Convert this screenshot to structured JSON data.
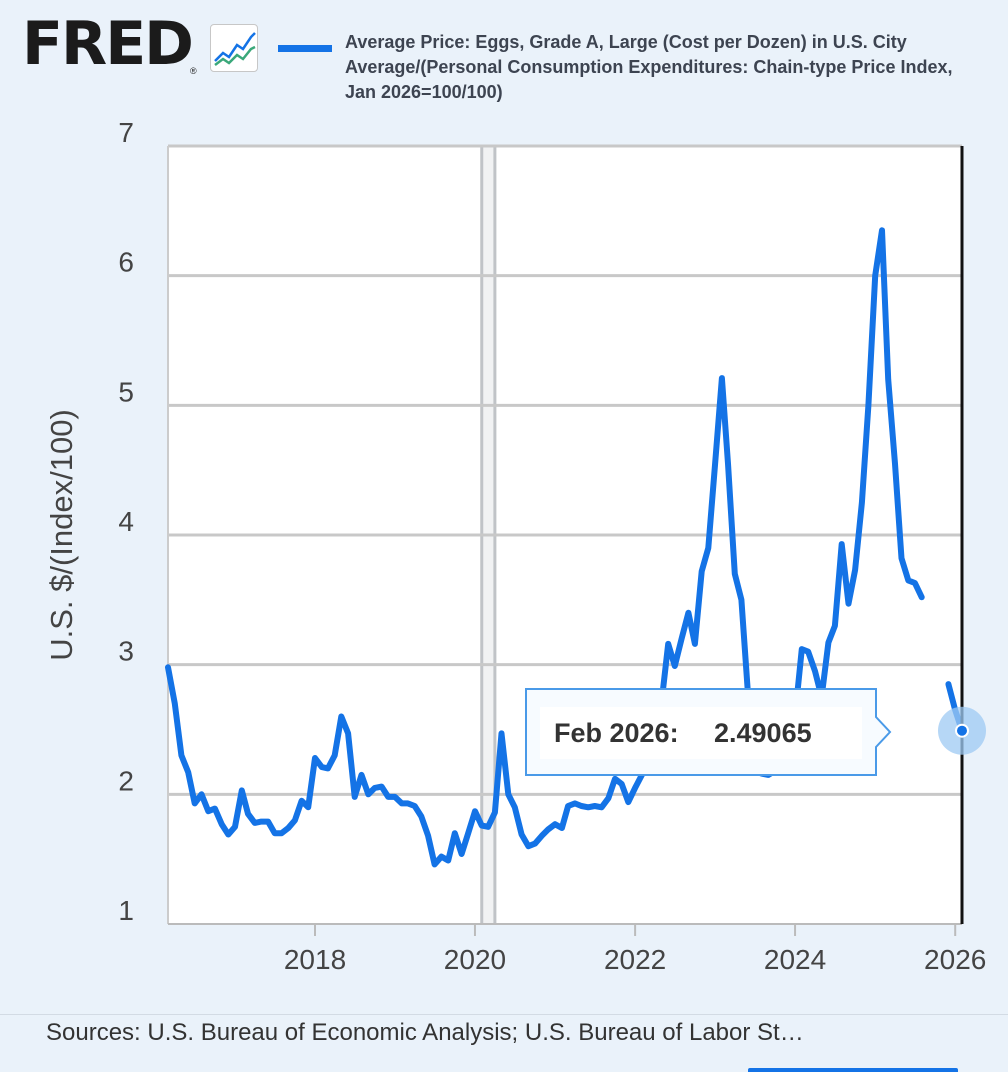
{
  "header": {
    "logo_text": "FRED",
    "logo_mark": "®",
    "logo_icon": "line-chart-icon",
    "legend_label": "Average Price: Eggs, Grade A, Large (Cost per Dozen) in U.S. City Average/(Personal Consumption Expenditures: Chain-type Price Index, Jan 2026=100/100)"
  },
  "tooltip": {
    "date": "Feb 2026:",
    "value": "2.49065"
  },
  "footer": {
    "sources": "Sources: U.S. Bureau of Economic Analysis; U.S. Bureau of Labor St…"
  },
  "colors": {
    "series": "#1473e6",
    "background": "#eaf2fa",
    "plot": "#ffffff",
    "grid": "#c8c8c8",
    "recession": "#c0c3c7"
  },
  "chart_data": {
    "type": "line",
    "title": "",
    "xlabel": "",
    "ylabel": "U.S. $/(Index/100)",
    "xlim": [
      "2016-03-01",
      "2026-02-01"
    ],
    "ylim": [
      1,
      7
    ],
    "y_ticks": [
      1,
      2,
      3,
      4,
      5,
      6,
      7
    ],
    "x_ticks": [
      "2018",
      "2020",
      "2022",
      "2024",
      "2026"
    ],
    "grid": true,
    "recession_shading": [
      "2020-02-01",
      "2020-04-01"
    ],
    "series": [
      {
        "name": "Average Price: Eggs, Grade A, Large (Cost per Dozen) in U.S. City Average/(Personal Consumption Expenditures: Chain-type Price Index, Jan 2026=100/100)",
        "points": [
          [
            "2016-03-01",
            2.98
          ],
          [
            "2016-04-01",
            2.7
          ],
          [
            "2016-05-01",
            2.3
          ],
          [
            "2016-06-01",
            2.17
          ],
          [
            "2016-07-01",
            1.93
          ],
          [
            "2016-08-01",
            2.0
          ],
          [
            "2016-09-01",
            1.87
          ],
          [
            "2016-10-01",
            1.89
          ],
          [
            "2016-11-01",
            1.77
          ],
          [
            "2016-12-01",
            1.69
          ],
          [
            "2017-01-01",
            1.75
          ],
          [
            "2017-02-01",
            2.03
          ],
          [
            "2017-03-01",
            1.85
          ],
          [
            "2017-04-01",
            1.78
          ],
          [
            "2017-05-01",
            1.79
          ],
          [
            "2017-06-01",
            1.79
          ],
          [
            "2017-07-01",
            1.7
          ],
          [
            "2017-08-01",
            1.7
          ],
          [
            "2017-09-01",
            1.74
          ],
          [
            "2017-10-01",
            1.8
          ],
          [
            "2017-11-01",
            1.95
          ],
          [
            "2017-12-01",
            1.9
          ],
          [
            "2018-01-01",
            2.28
          ],
          [
            "2018-02-01",
            2.21
          ],
          [
            "2018-03-01",
            2.2
          ],
          [
            "2018-04-01",
            2.3
          ],
          [
            "2018-05-01",
            2.6
          ],
          [
            "2018-06-01",
            2.47
          ],
          [
            "2018-07-01",
            1.98
          ],
          [
            "2018-08-01",
            2.15
          ],
          [
            "2018-09-01",
            2.0
          ],
          [
            "2018-10-01",
            2.05
          ],
          [
            "2018-11-01",
            2.06
          ],
          [
            "2018-12-01",
            1.98
          ],
          [
            "2019-01-01",
            1.98
          ],
          [
            "2019-02-01",
            1.93
          ],
          [
            "2019-03-01",
            1.93
          ],
          [
            "2019-04-01",
            1.91
          ],
          [
            "2019-05-01",
            1.83
          ],
          [
            "2019-06-01",
            1.68
          ],
          [
            "2019-07-01",
            1.46
          ],
          [
            "2019-08-01",
            1.52
          ],
          [
            "2019-09-01",
            1.49
          ],
          [
            "2019-10-01",
            1.7
          ],
          [
            "2019-11-01",
            1.54
          ],
          [
            "2019-12-01",
            1.7
          ],
          [
            "2020-01-01",
            1.87
          ],
          [
            "2020-02-01",
            1.76
          ],
          [
            "2020-03-01",
            1.75
          ],
          [
            "2020-04-01",
            1.86
          ],
          [
            "2020-05-01",
            2.47
          ],
          [
            "2020-06-01",
            2.0
          ],
          [
            "2020-07-01",
            1.9
          ],
          [
            "2020-08-01",
            1.69
          ],
          [
            "2020-09-01",
            1.6
          ],
          [
            "2020-10-01",
            1.62
          ],
          [
            "2020-11-01",
            1.68
          ],
          [
            "2020-12-01",
            1.73
          ],
          [
            "2021-01-01",
            1.77
          ],
          [
            "2021-02-01",
            1.74
          ],
          [
            "2021-03-01",
            1.91
          ],
          [
            "2021-04-01",
            1.93
          ],
          [
            "2021-05-01",
            1.91
          ],
          [
            "2021-06-01",
            1.9
          ],
          [
            "2021-07-01",
            1.91
          ],
          [
            "2021-08-01",
            1.9
          ],
          [
            "2021-09-01",
            1.97
          ],
          [
            "2021-10-01",
            2.12
          ],
          [
            "2021-11-01",
            2.08
          ],
          [
            "2021-12-01",
            1.94
          ],
          [
            "2022-01-01",
            2.05
          ],
          [
            "2022-02-01",
            2.15
          ],
          [
            "2022-03-01",
            2.25
          ],
          [
            "2022-04-01",
            2.35
          ],
          [
            "2022-05-01",
            2.7
          ],
          [
            "2022-06-01",
            3.16
          ],
          [
            "2022-07-01",
            2.99
          ],
          [
            "2022-08-01",
            3.2
          ],
          [
            "2022-09-01",
            3.4
          ],
          [
            "2022-10-01",
            3.16
          ],
          [
            "2022-11-01",
            3.72
          ],
          [
            "2022-12-01",
            3.9
          ],
          [
            "2023-01-01",
            4.55
          ],
          [
            "2023-02-01",
            5.21
          ],
          [
            "2023-03-01",
            4.55
          ],
          [
            "2023-04-01",
            3.7
          ],
          [
            "2023-05-01",
            3.5
          ],
          [
            "2023-06-01",
            2.75
          ],
          [
            "2023-07-01",
            2.25
          ],
          [
            "2023-08-01",
            2.16
          ],
          [
            "2023-09-01",
            2.15
          ],
          [
            "2023-10-01",
            2.18
          ],
          [
            "2023-11-01",
            2.25
          ],
          [
            "2023-12-01",
            2.6
          ],
          [
            "2024-01-01",
            2.6
          ],
          [
            "2024-02-01",
            3.12
          ],
          [
            "2024-03-01",
            3.1
          ],
          [
            "2024-04-01",
            2.95
          ],
          [
            "2024-05-01",
            2.75
          ],
          [
            "2024-06-01",
            3.17
          ],
          [
            "2024-07-01",
            3.3
          ],
          [
            "2024-08-01",
            3.93
          ],
          [
            "2024-09-01",
            3.47
          ],
          [
            "2024-10-01",
            3.73
          ],
          [
            "2024-11-01",
            4.25
          ],
          [
            "2024-12-01",
            5.0
          ],
          [
            "2025-01-01",
            6.0
          ],
          [
            "2025-02-01",
            6.35
          ],
          [
            "2025-03-01",
            5.2
          ],
          [
            "2025-04-01",
            4.55
          ],
          [
            "2025-05-01",
            3.82
          ],
          [
            "2025-06-01",
            3.65
          ],
          [
            "2025-07-01",
            3.63
          ],
          [
            "2025-08-01",
            3.52
          ],
          [
            "2025-09-01",
            null
          ],
          [
            "2025-10-01",
            null
          ],
          [
            "2025-11-01",
            null
          ],
          [
            "2025-12-01",
            2.85
          ],
          [
            "2026-01-01",
            2.65
          ],
          [
            "2026-02-01",
            2.49065
          ]
        ]
      }
    ]
  }
}
